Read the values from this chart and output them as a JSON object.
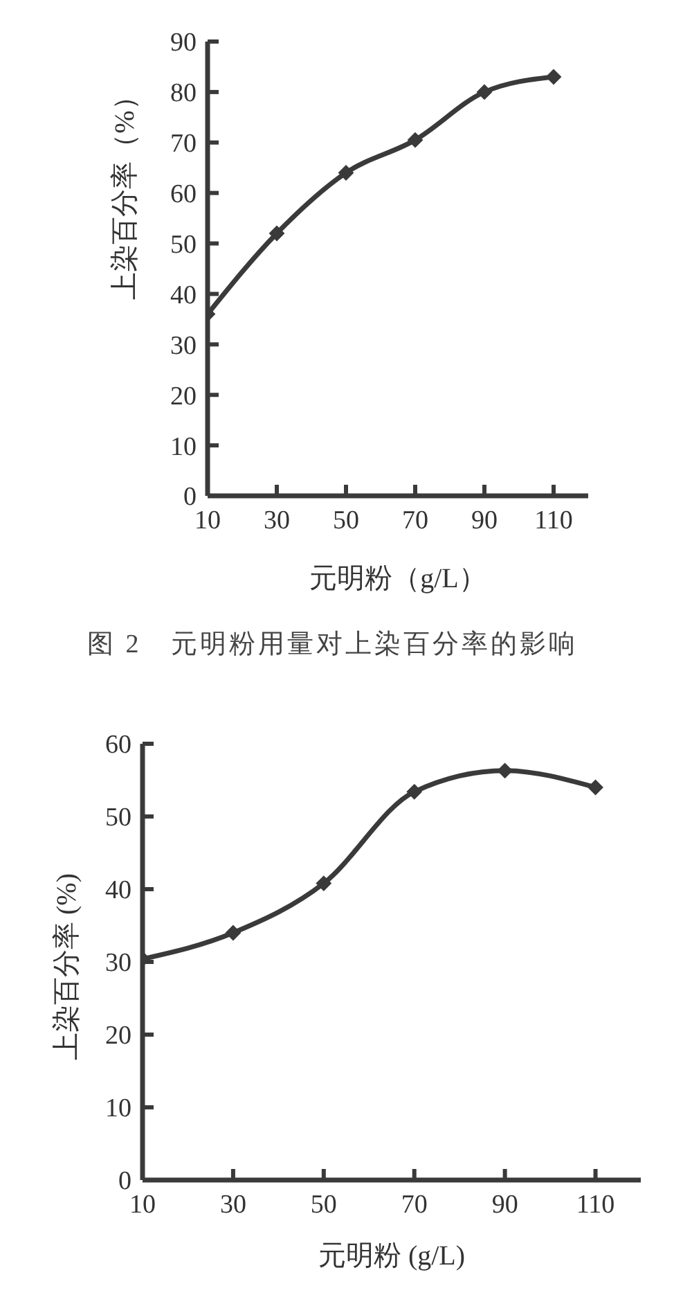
{
  "chart_data": [
    {
      "type": "line",
      "x": [
        10,
        30,
        50,
        70,
        90,
        110
      ],
      "xlim": [
        10,
        120
      ],
      "xticks": [
        10,
        30,
        50,
        70,
        90,
        110
      ],
      "ylim": [
        0,
        90
      ],
      "yticks": [
        0,
        10,
        20,
        30,
        40,
        50,
        60,
        70,
        80,
        90
      ],
      "xlabel": "元明粉（g/L）",
      "ylabel": "上染百分率（%）",
      "annotations": [
        "图 2　元明粉用量对上染百分率的影响"
      ],
      "grid": false,
      "marker": "diamond",
      "line_style": "solid",
      "series": [
        {
          "color": "#3a3a3a",
          "values": [
            36,
            52,
            64,
            70.5,
            80,
            83
          ]
        }
      ]
    },
    {
      "type": "line",
      "x": [
        10,
        30,
        50,
        70,
        90,
        110
      ],
      "xlim": [
        10,
        120
      ],
      "xticks": [
        10,
        30,
        50,
        70,
        90,
        110
      ],
      "ylim": [
        0,
        60
      ],
      "yticks": [
        0,
        10,
        20,
        30,
        40,
        50,
        60
      ],
      "xlabel": "元明粉 (g/L)",
      "ylabel": "上染百分率 (%)",
      "grid": false,
      "marker": "diamond",
      "line_style": "solid",
      "series": [
        {
          "color": "#3a3a3a",
          "values": [
            30.4,
            34,
            40.8,
            53.4,
            56.3,
            54
          ]
        }
      ]
    }
  ]
}
